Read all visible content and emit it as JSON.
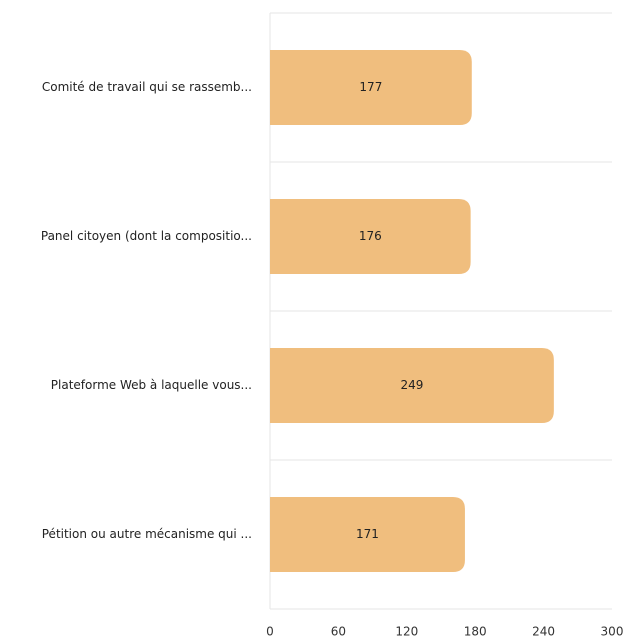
{
  "chart_data": {
    "type": "barh",
    "categories": [
      "Comité de travail qui se rassemb...",
      "Panel citoyen (dont la compositio...",
      "Plateforme Web à laquelle vous...",
      "Pétition ou autre mécanisme qui ..."
    ],
    "values": [
      177,
      176,
      249,
      171
    ],
    "color": "#f0be7e",
    "xlim": [
      0,
      300
    ],
    "xticks": [
      0,
      60,
      120,
      180,
      240,
      300
    ]
  }
}
